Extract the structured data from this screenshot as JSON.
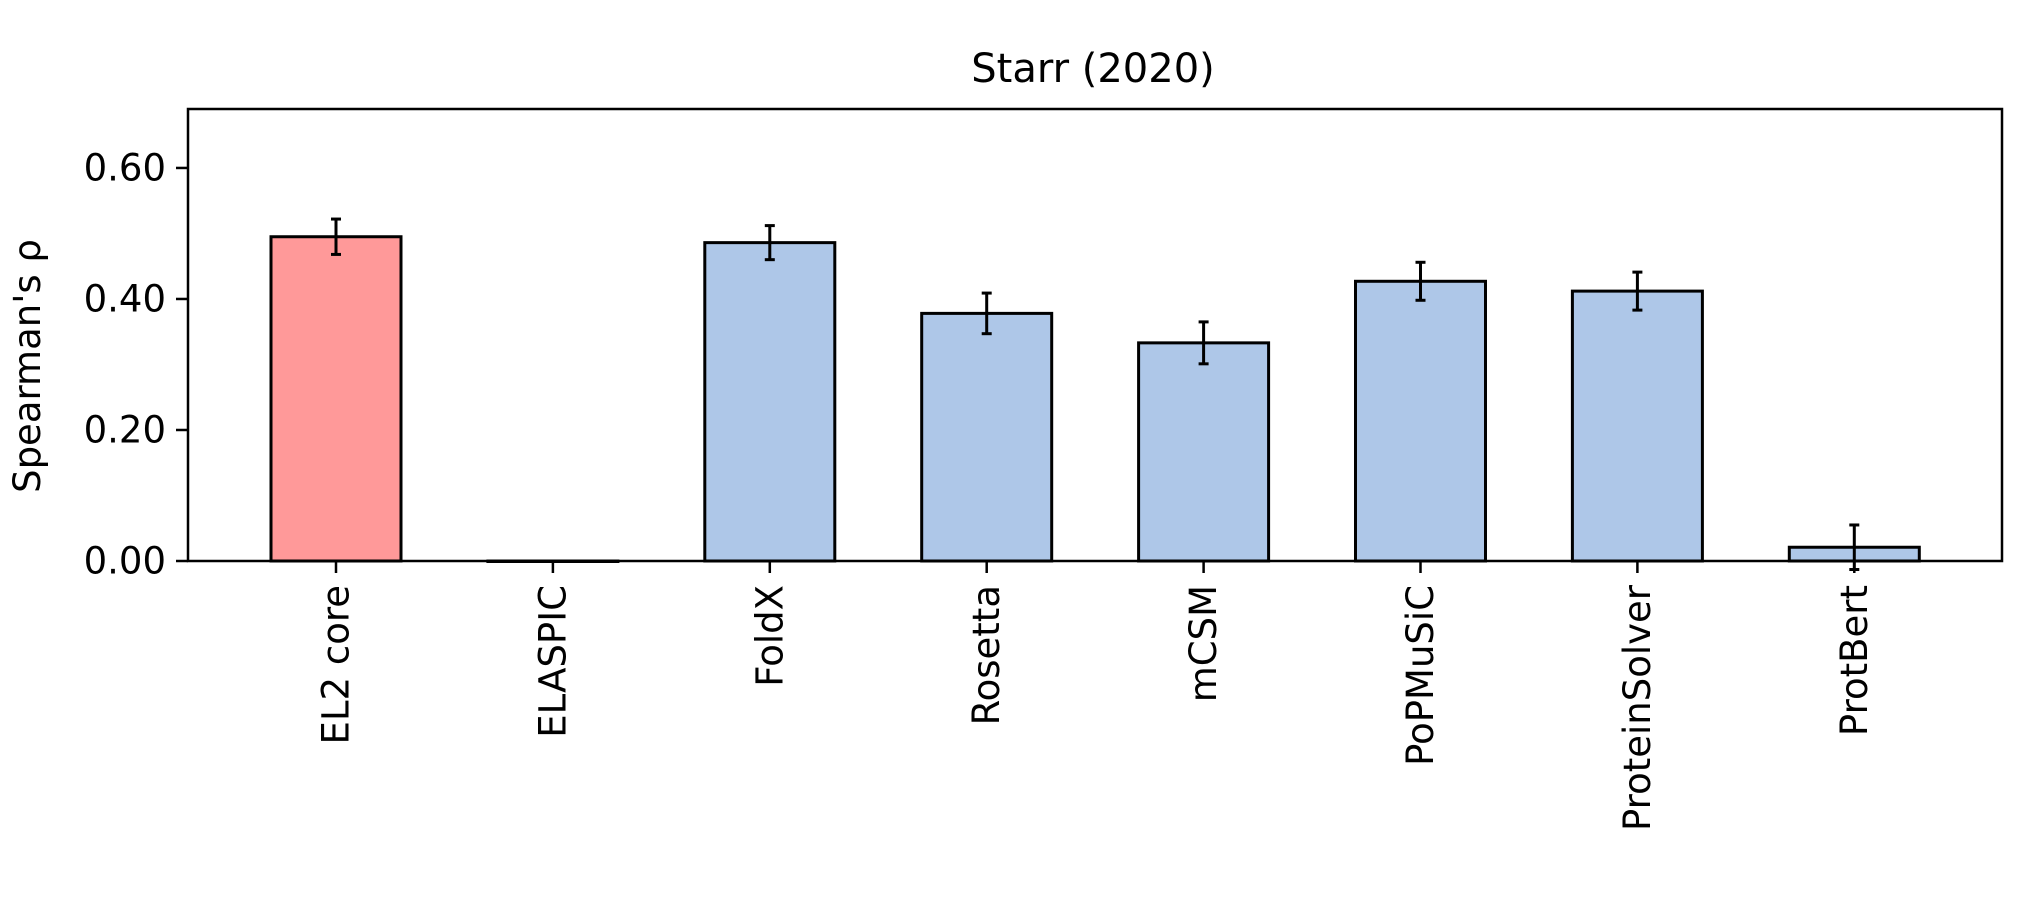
{
  "chart_data": {
    "type": "bar",
    "title": "Starr (2020)",
    "xlabel": "",
    "ylabel": "Spearman's ρ",
    "ylim": [
      0,
      0.69
    ],
    "yticks": [
      {
        "value": 0.0,
        "label": "0.00"
      },
      {
        "value": 0.2,
        "label": "0.20"
      },
      {
        "value": 0.4,
        "label": "0.40"
      },
      {
        "value": 0.6,
        "label": "0.60"
      }
    ],
    "categories": [
      "EL2 core",
      "ELASPIC",
      "FoldX",
      "Rosetta",
      "mCSM",
      "PoPMuSiC",
      "ProteinSolver",
      "ProtBert"
    ],
    "values": [
      0.495,
      0.0,
      0.486,
      0.378,
      0.333,
      0.427,
      0.412,
      0.021
    ],
    "errors": [
      0.027,
      0.0,
      0.026,
      0.031,
      0.032,
      0.029,
      0.029,
      0.034
    ],
    "colors": [
      "#ff9999",
      "#aec7e8",
      "#aec7e8",
      "#aec7e8",
      "#aec7e8",
      "#aec7e8",
      "#aec7e8",
      "#aec7e8"
    ],
    "edge_color": "#000000",
    "grid": false,
    "legend": "none"
  }
}
